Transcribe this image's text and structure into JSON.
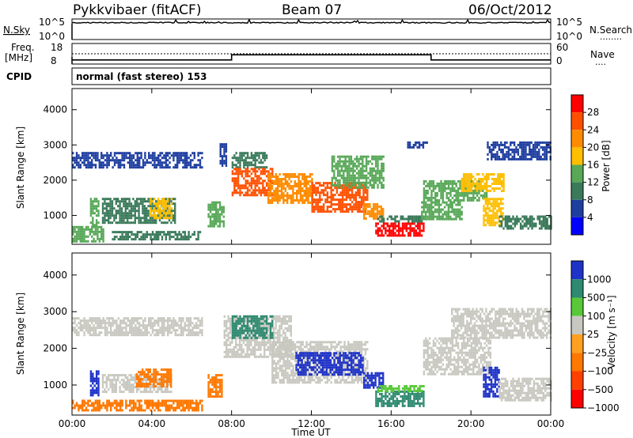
{
  "header": {
    "radar": "Pykkvibaer (fitACF)",
    "beam": "Beam 07",
    "date": "06/Oct/2012"
  },
  "top_panels": {
    "nsky_label": "N.Sky",
    "nsearch_label": "N.Search",
    "nsearch_dots": "........",
    "freq_label_1": "Freq.",
    "freq_label_2": "[MHz]",
    "nave_label": "Nave",
    "nave_dots": "....",
    "cpid_label": "CPID",
    "nsky_ticks": [
      "10^5",
      "10^0"
    ],
    "nsearch_ticks": [
      "10^5",
      "10^0"
    ],
    "freq_ticks": [
      "18",
      "8"
    ],
    "nave_ticks": [
      "60",
      "0"
    ],
    "cpid_text": "normal (fast stereo) 153"
  },
  "axes": {
    "xlabel": "Time UT",
    "ylabel_power": "Slant Range [km]",
    "ylabel_velocity": "Slant Range [km]",
    "x_ticks": [
      "00:00",
      "04:00",
      "08:00",
      "12:00",
      "16:00",
      "20:00",
      "00:00"
    ],
    "y_ticks": [
      "4000",
      "3000",
      "2000",
      "1000"
    ]
  },
  "colorbars": {
    "power": {
      "label": "Power [dB]",
      "ticks": [
        "28",
        "24",
        "20",
        "16",
        "12",
        "8",
        "4"
      ],
      "colors": [
        "#ff0000",
        "#ff5000",
        "#ff8c00",
        "#ffbe00",
        "#58a858",
        "#3a7a5a",
        "#1e3ea0",
        "#0000ff"
      ]
    },
    "velocity": {
      "label": "Velocity [m s⁻¹]",
      "ticks": [
        "1000",
        "500",
        "100",
        "25",
        "−25",
        "−100",
        "−500",
        "−1000"
      ],
      "colors": [
        "#1e32c8",
        "#2e8a70",
        "#58c838",
        "#c8c8c0",
        "#ffa020",
        "#ff7800",
        "#ff4000",
        "#ff0000"
      ]
    }
  },
  "chart_data": {
    "type": "heatmap",
    "x_range_hours": [
      0,
      24
    ],
    "y_range_km": [
      180,
      4600
    ],
    "power_bands": [
      {
        "t0": 0.0,
        "t1": 6.5,
        "r0": 2350,
        "r1": 2800,
        "dB": 6
      },
      {
        "t0": 0.0,
        "t1": 1.6,
        "r0": 250,
        "r1": 700,
        "dB": 14
      },
      {
        "t0": 0.9,
        "t1": 1.3,
        "r0": 700,
        "r1": 1500,
        "dB": 14
      },
      {
        "t0": 1.5,
        "t1": 5.2,
        "r0": 800,
        "r1": 1500,
        "dB": 10
      },
      {
        "t0": 3.9,
        "t1": 5.0,
        "r0": 900,
        "r1": 1500,
        "dB": 18
      },
      {
        "t0": 2.0,
        "t1": 6.4,
        "r0": 320,
        "r1": 560,
        "dB": 8
      },
      {
        "t0": 6.8,
        "t1": 7.6,
        "r0": 700,
        "r1": 1400,
        "dB": 12
      },
      {
        "t0": 7.4,
        "t1": 7.7,
        "r0": 2400,
        "r1": 3050,
        "dB": 6
      },
      {
        "t0": 8.0,
        "t1": 9.8,
        "r0": 2350,
        "r1": 2800,
        "dB": 10
      },
      {
        "t0": 8.0,
        "t1": 10.0,
        "r0": 1600,
        "r1": 2350,
        "dB": 26
      },
      {
        "t0": 9.8,
        "t1": 12.0,
        "r0": 1350,
        "r1": 2200,
        "dB": 22
      },
      {
        "t0": 12.0,
        "t1": 14.8,
        "r0": 1100,
        "r1": 1950,
        "dB": 26
      },
      {
        "t0": 13.0,
        "t1": 15.6,
        "r0": 1800,
        "r1": 2700,
        "dB": 12
      },
      {
        "t0": 14.6,
        "t1": 15.6,
        "r0": 900,
        "r1": 1350,
        "dB": 22
      },
      {
        "t0": 15.2,
        "t1": 17.6,
        "r0": 420,
        "r1": 800,
        "dB": 28
      },
      {
        "t0": 15.3,
        "t1": 17.6,
        "r0": 800,
        "r1": 1000,
        "dB": 8
      },
      {
        "t0": 16.8,
        "t1": 17.8,
        "r0": 2900,
        "r1": 3100,
        "dB": 6
      },
      {
        "t0": 17.6,
        "t1": 20.8,
        "r0": 1400,
        "r1": 2000,
        "dB": 12
      },
      {
        "t0": 17.5,
        "t1": 19.5,
        "r0": 900,
        "r1": 1400,
        "dB": 14
      },
      {
        "t0": 19.5,
        "t1": 21.6,
        "r0": 1700,
        "r1": 2200,
        "dB": 18
      },
      {
        "t0": 20.6,
        "t1": 21.6,
        "r0": 700,
        "r1": 1500,
        "dB": 16
      },
      {
        "t0": 20.8,
        "t1": 24.0,
        "r0": 2600,
        "r1": 3100,
        "dB": 6
      },
      {
        "t0": 21.4,
        "t1": 24.0,
        "r0": 600,
        "r1": 1000,
        "dB": 8
      }
    ],
    "velocity_bands": [
      {
        "t0": 0.0,
        "t1": 6.5,
        "r0": 2350,
        "r1": 2850,
        "v": 10
      },
      {
        "t0": 0.0,
        "t1": 6.5,
        "r0": 300,
        "r1": 600,
        "v": -150
      },
      {
        "t0": 0.9,
        "t1": 1.3,
        "r0": 700,
        "r1": 1400,
        "v": 600
      },
      {
        "t0": 1.5,
        "t1": 5.0,
        "r0": 800,
        "r1": 1300,
        "v": 10
      },
      {
        "t0": 3.2,
        "t1": 5.0,
        "r0": 950,
        "r1": 1450,
        "v": -150
      },
      {
        "t0": 6.8,
        "t1": 7.5,
        "r0": 700,
        "r1": 1300,
        "v": -150
      },
      {
        "t0": 7.6,
        "t1": 11.0,
        "r0": 1800,
        "r1": 2900,
        "v": 10
      },
      {
        "t0": 8.0,
        "t1": 10.0,
        "r0": 2300,
        "r1": 2900,
        "v": 200
      },
      {
        "t0": 10.0,
        "t1": 14.8,
        "r0": 1100,
        "r1": 2200,
        "v": 10
      },
      {
        "t0": 11.2,
        "t1": 14.6,
        "r0": 1300,
        "r1": 1900,
        "v": 600
      },
      {
        "t0": 14.6,
        "t1": 15.6,
        "r0": 900,
        "r1": 1350,
        "v": 600
      },
      {
        "t0": 15.2,
        "t1": 17.6,
        "r0": 420,
        "r1": 850,
        "v": 100
      },
      {
        "t0": 15.3,
        "t1": 17.6,
        "r0": 850,
        "r1": 1000,
        "v": 30
      },
      {
        "t0": 17.6,
        "t1": 21.0,
        "r0": 1300,
        "r1": 2300,
        "v": 10
      },
      {
        "t0": 19.0,
        "t1": 24.0,
        "r0": 2300,
        "r1": 3100,
        "v": 10
      },
      {
        "t0": 20.6,
        "t1": 21.4,
        "r0": 700,
        "r1": 1500,
        "v": 600
      },
      {
        "t0": 21.4,
        "t1": 24.0,
        "r0": 600,
        "r1": 1200,
        "v": 10
      }
    ],
    "nsky_level": 0.82,
    "freq_steps": [
      {
        "t0": 0.0,
        "t1": 8.0,
        "mhz": 10
      },
      {
        "t0": 8.0,
        "t1": 18.0,
        "mhz": 12.5
      },
      {
        "t0": 18.0,
        "t1": 24.0,
        "mhz": 10
      }
    ]
  }
}
